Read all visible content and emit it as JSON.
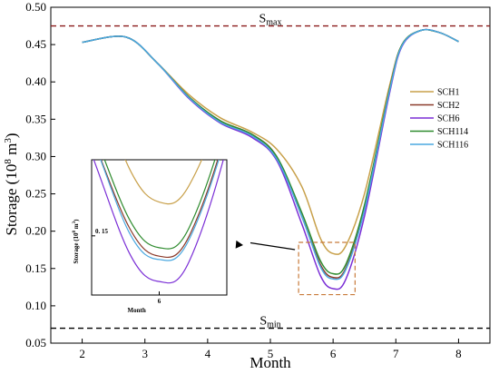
{
  "chart_data": {
    "type": "line",
    "xlabel": "Month",
    "ylabel": "Storage (10^8 m^3)",
    "ylabel_parts": {
      "prefix": "Storage (10",
      "sup1": "8",
      "mid": " m",
      "sup2": "3",
      "suffix": ")"
    },
    "xlim": [
      1.5,
      8.5
    ],
    "ylim": [
      0.05,
      0.5
    ],
    "xticks": [
      "2",
      "3",
      "4",
      "5",
      "6",
      "7",
      "8"
    ],
    "yticks": [
      "0.05",
      "0.10",
      "0.15",
      "0.20",
      "0.25",
      "0.30",
      "0.35",
      "0.40",
      "0.45",
      "0.50"
    ],
    "reference_lines": [
      {
        "key": "smax",
        "label": "S",
        "sub": "max",
        "value": 0.475,
        "color": "#8b1a1a"
      },
      {
        "key": "smin",
        "label": "S",
        "sub": "min",
        "value": 0.07,
        "color": "#000000"
      }
    ],
    "legend_position": "right",
    "series": [
      {
        "name": "SCH1",
        "color": "#c8a04a",
        "x": [
          2,
          2.7,
          3.2,
          3.7,
          4.2,
          4.7,
          5.1,
          5.5,
          5.8,
          6.0,
          6.2,
          6.5,
          6.9,
          7.1,
          7.4,
          7.7,
          8
        ],
        "y": [
          0.453,
          0.46,
          0.425,
          0.383,
          0.352,
          0.333,
          0.31,
          0.26,
          0.19,
          0.17,
          0.18,
          0.25,
          0.395,
          0.45,
          0.469,
          0.466,
          0.454
        ]
      },
      {
        "name": "SCH2",
        "color": "#8b3a2a",
        "x": [
          2,
          2.7,
          3.2,
          3.7,
          4.2,
          4.7,
          5.1,
          5.5,
          5.8,
          6.0,
          6.2,
          6.5,
          6.9,
          7.1,
          7.4,
          7.7,
          8
        ],
        "y": [
          0.453,
          0.46,
          0.425,
          0.38,
          0.348,
          0.33,
          0.3,
          0.22,
          0.155,
          0.138,
          0.15,
          0.23,
          0.39,
          0.45,
          0.469,
          0.466,
          0.454
        ]
      },
      {
        "name": "SCH6",
        "color": "#7b2fd6",
        "x": [
          2,
          2.7,
          3.2,
          3.7,
          4.2,
          4.7,
          5.1,
          5.5,
          5.8,
          6.0,
          6.2,
          6.5,
          6.9,
          7.1,
          7.4,
          7.7,
          8
        ],
        "y": [
          0.453,
          0.46,
          0.425,
          0.378,
          0.345,
          0.326,
          0.295,
          0.21,
          0.14,
          0.123,
          0.135,
          0.22,
          0.385,
          0.448,
          0.469,
          0.466,
          0.454
        ]
      },
      {
        "name": "SCH114",
        "color": "#2e8b2e",
        "x": [
          2,
          2.7,
          3.2,
          3.7,
          4.2,
          4.7,
          5.1,
          5.5,
          5.8,
          6.0,
          6.2,
          6.5,
          6.9,
          7.1,
          7.4,
          7.7,
          8
        ],
        "y": [
          0.453,
          0.46,
          0.425,
          0.38,
          0.348,
          0.33,
          0.3,
          0.225,
          0.16,
          0.143,
          0.155,
          0.235,
          0.39,
          0.45,
          0.469,
          0.466,
          0.454
        ]
      },
      {
        "name": "SCH116",
        "color": "#4aa8e0",
        "x": [
          2,
          2.7,
          3.2,
          3.7,
          4.2,
          4.7,
          5.1,
          5.5,
          5.8,
          6.0,
          6.2,
          6.5,
          6.9,
          7.1,
          7.4,
          7.7,
          8
        ],
        "y": [
          0.453,
          0.46,
          0.425,
          0.379,
          0.346,
          0.328,
          0.297,
          0.22,
          0.152,
          0.136,
          0.148,
          0.228,
          0.388,
          0.449,
          0.469,
          0.466,
          0.454
        ]
      }
    ],
    "inset": {
      "xlabel": "Month",
      "ylabel_parts": {
        "prefix": "Storage (10",
        "sup1": "8",
        "mid": " m",
        "sup2": "3",
        "suffix": ")"
      },
      "xtick": "6",
      "ytick": "0. 15",
      "xlim": [
        5.55,
        6.45
      ],
      "ylim": [
        0.115,
        0.195
      ],
      "zoom_box": {
        "x": [
          5.45,
          6.35
        ],
        "y": [
          0.115,
          0.185
        ]
      }
    }
  }
}
